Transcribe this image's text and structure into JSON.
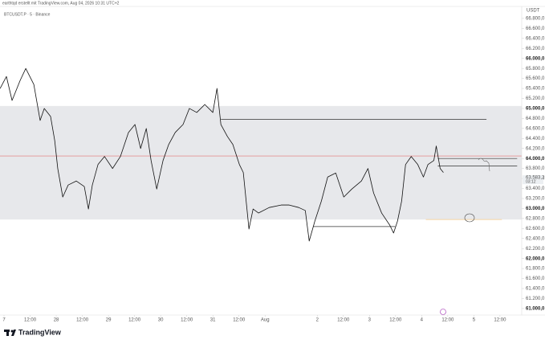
{
  "header": "earthtqd erstellt mit TradingView.com, Aug 04, 2026 10:31 UTC+2",
  "brand": "TradingView",
  "chart_data": {
    "type": "line",
    "title": "BTCUSDT.P · 5 · Binance",
    "y_unit": "USDT",
    "xlim": [
      -1.85,
      238
    ],
    "ylim": [
      60870,
      67040
    ],
    "xticks": [
      {
        "value": 0,
        "label": "7"
      },
      {
        "value": 12,
        "label": "12:00"
      },
      {
        "value": 24,
        "label": "28"
      },
      {
        "value": 36,
        "label": "12:00"
      },
      {
        "value": 48,
        "label": "29"
      },
      {
        "value": 60,
        "label": "12:00"
      },
      {
        "value": 72,
        "label": "30"
      },
      {
        "value": 84,
        "label": "12:00"
      },
      {
        "value": 96,
        "label": "31"
      },
      {
        "value": 108,
        "label": "12:00"
      },
      {
        "value": 120,
        "label": "Aug"
      },
      {
        "value": 144,
        "label": "2"
      },
      {
        "value": 156,
        "label": "12:00"
      },
      {
        "value": 168,
        "label": "3"
      },
      {
        "value": 180,
        "label": "12:00"
      },
      {
        "value": 192,
        "label": "4"
      },
      {
        "value": 204,
        "label": "12:00"
      },
      {
        "value": 216,
        "label": "5"
      },
      {
        "value": 228,
        "label": "12:00"
      }
    ],
    "yticks": [
      {
        "value": 61000,
        "label": "61.000,0"
      },
      {
        "value": 61200,
        "label": "61.200,0"
      },
      {
        "value": 61400,
        "label": "61.400,0"
      },
      {
        "value": 61600,
        "label": "61.600,0"
      },
      {
        "value": 61800,
        "label": "61.800,0"
      },
      {
        "value": 62000,
        "label": "62.000,0"
      },
      {
        "value": 62200,
        "label": "62.200,0"
      },
      {
        "value": 62400,
        "label": "62.400,0"
      },
      {
        "value": 62600,
        "label": "62.600,0"
      },
      {
        "value": 62800,
        "label": "62.800,0"
      },
      {
        "value": 63000,
        "label": "63.000,0"
      },
      {
        "value": 63200,
        "label": "63.200,0"
      },
      {
        "value": 63400,
        "label": "63.400,0"
      },
      {
        "value": 63600,
        "label": "63.600,0"
      },
      {
        "value": 63800,
        "label": "63.800,0"
      },
      {
        "value": 64000,
        "label": "64.000,0"
      },
      {
        "value": 64200,
        "label": "64.200,0"
      },
      {
        "value": 64400,
        "label": "64.400,0"
      },
      {
        "value": 64600,
        "label": "64.600,0"
      },
      {
        "value": 64800,
        "label": "64.800,0"
      },
      {
        "value": 65000,
        "label": "65.000,0"
      },
      {
        "value": 65200,
        "label": "65.200,0"
      },
      {
        "value": 65400,
        "label": "65.400,0"
      },
      {
        "value": 65600,
        "label": "65.600,0"
      },
      {
        "value": 65800,
        "label": "65.800,0"
      },
      {
        "value": 66000,
        "label": "66.000,0"
      },
      {
        "value": 66200,
        "label": "66.200,0"
      },
      {
        "value": 66400,
        "label": "66.400,0"
      },
      {
        "value": 66600,
        "label": "66.600,0"
      },
      {
        "value": 66800,
        "label": "66.800,0"
      }
    ],
    "zone": {
      "ylim": [
        62780,
        65050
      ],
      "color": "#e7e8eb"
    },
    "price_line": {
      "value": 64050,
      "color": "#e57373"
    },
    "hlines": [
      {
        "value": 64780,
        "x": [
          99.7,
          221.8
        ],
        "color": "#333333"
      },
      {
        "value": 64000,
        "x": [
          199.4,
          235.9
        ],
        "color": "#333333"
      },
      {
        "value": 63850,
        "x": [
          199.4,
          235.9
        ],
        "color": "#333333"
      },
      {
        "value": 62640,
        "x": [
          142.2,
          179.8
        ],
        "color": "#333333"
      },
      {
        "value": 62780,
        "x": [
          193.9,
          228.9
        ],
        "color": "#f6c98a"
      }
    ],
    "last_price": {
      "value": 63583.2,
      "label": "63.583,2",
      "countdown": "03:12"
    },
    "series": [
      {
        "color": "#111111",
        "x": [
          -1.8,
          1.1,
          3.7,
          7.4,
          10,
          13.7,
          16.6,
          18.5,
          21.4,
          23.3,
          24.7,
          27,
          29.5,
          33.2,
          36.9,
          38.8,
          40.6,
          43.2,
          46.2,
          49.9,
          53.5,
          57.2,
          60.2,
          62.8,
          65.4,
          67.6,
          70.2,
          73.1,
          75.7,
          78.7,
          82.3,
          85.2,
          88.6,
          92.3,
          96,
          97.9,
          99.7,
          102.7,
          105.2,
          108.2,
          110,
          112.6,
          114.5,
          117,
          121.9,
          127.4,
          131.1,
          135.5,
          138.5,
          140.3,
          142.9,
          145.9,
          148.8,
          152.5,
          156.2,
          159.9,
          164.3,
          167.3,
          169.9,
          173.6,
          177.3,
          179.1,
          180.9,
          182.8,
          184.6,
          187.2,
          190.2,
          192.8,
          194.9,
          197.6,
          198.7,
          200.5,
          202
        ],
        "values": [
          65400,
          65640,
          65160,
          65560,
          65800,
          65480,
          64760,
          65000,
          64840,
          64360,
          63800,
          63230,
          63470,
          63550,
          63440,
          62990,
          63470,
          63880,
          64040,
          63800,
          64040,
          64520,
          64680,
          64200,
          64600,
          63960,
          63390,
          63960,
          64280,
          64520,
          64680,
          65000,
          64920,
          65080,
          64920,
          65400,
          64680,
          64440,
          64280,
          63880,
          63720,
          62590,
          62990,
          62910,
          63020,
          63070,
          63070,
          63020,
          62960,
          62350,
          62750,
          63150,
          63630,
          63710,
          63230,
          63390,
          63550,
          63800,
          63310,
          62910,
          62670,
          62510,
          62750,
          63150,
          63880,
          64040,
          63880,
          63630,
          63880,
          63960,
          64250,
          63800,
          63720
        ]
      }
    ]
  }
}
